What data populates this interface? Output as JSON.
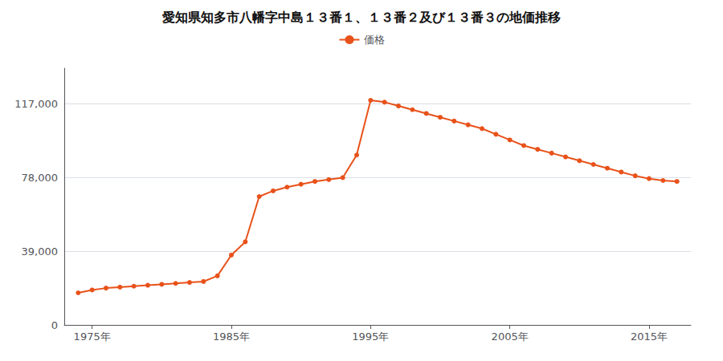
{
  "chart_data": {
    "type": "line",
    "title": "愛知県知多市八幡字中島１３番１、１３番２及び１３番３の地価推移",
    "x": [
      1974,
      1975,
      1976,
      1977,
      1978,
      1979,
      1980,
      1981,
      1982,
      1983,
      1984,
      1985,
      1986,
      1987,
      1988,
      1989,
      1990,
      1991,
      1992,
      1993,
      1994,
      1995,
      1996,
      1997,
      1998,
      1999,
      2000,
      2001,
      2002,
      2003,
      2004,
      2005,
      2006,
      2007,
      2008,
      2009,
      2010,
      2011,
      2012,
      2013,
      2014,
      2015,
      2016,
      2017
    ],
    "series": [
      {
        "name": "価格",
        "color": "#e8521a",
        "marker": "circle",
        "values": [
          17000,
          18500,
          19500,
          20000,
          20500,
          21000,
          21500,
          22000,
          22500,
          23000,
          26000,
          37000,
          44000,
          68000,
          71000,
          73000,
          74500,
          76000,
          77000,
          78000,
          90000,
          119000,
          118000,
          116000,
          114000,
          112000,
          110000,
          108000,
          106000,
          104000,
          101000,
          98000,
          95000,
          93000,
          91000,
          89000,
          87000,
          85000,
          83000,
          81000,
          79000,
          77500,
          76500,
          76000
        ]
      }
    ],
    "xlim": [
      1973,
      2018
    ],
    "ylim": [
      0,
      136000
    ],
    "xticks": [
      {
        "value": 1975,
        "label": "1975年"
      },
      {
        "value": 1985,
        "label": "1985年"
      },
      {
        "value": 1995,
        "label": "1995年"
      },
      {
        "value": 2005,
        "label": "2005年"
      },
      {
        "value": 2015,
        "label": "2015年"
      }
    ],
    "yticks": [
      0,
      {
        "value": 39000,
        "label": "39,000"
      },
      {
        "value": 78000,
        "label": "78,000"
      },
      {
        "value": 117000,
        "label": "117,000"
      }
    ],
    "grid": true,
    "legend": "top"
  }
}
